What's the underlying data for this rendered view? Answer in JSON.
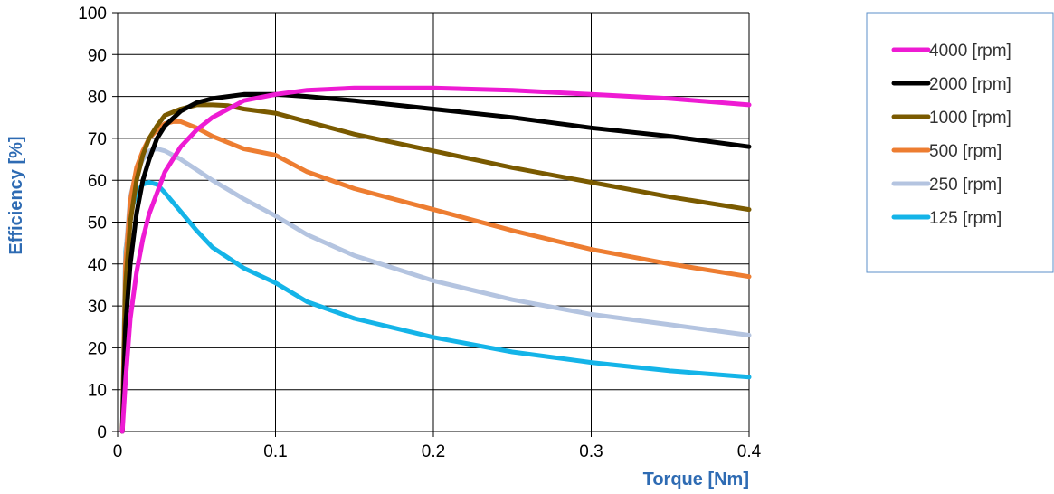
{
  "chart_data": {
    "type": "line",
    "xlabel": "Torque [Nm]",
    "ylabel": "Efficiency [%]",
    "xlim": [
      0,
      0.4
    ],
    "ylim": [
      0,
      100
    ],
    "x_ticks": [
      "0",
      "0.1",
      "0.2",
      "0.3",
      "0.4"
    ],
    "y_ticks": [
      "0",
      "10",
      "20",
      "30",
      "40",
      "50",
      "60",
      "70",
      "80",
      "90",
      "100"
    ],
    "grid": "on",
    "legend_position": "right",
    "series": [
      {
        "name": "4000 [rpm]",
        "color": "#ee1bd3",
        "x": [
          0.003,
          0.005,
          0.008,
          0.012,
          0.016,
          0.02,
          0.025,
          0.03,
          0.04,
          0.05,
          0.06,
          0.07,
          0.08,
          0.1,
          0.12,
          0.15,
          0.18,
          0.2,
          0.25,
          0.3,
          0.35,
          0.4
        ],
        "y": [
          0,
          12,
          27,
          38,
          46,
          52,
          57,
          62,
          68,
          72,
          75,
          77,
          79,
          80.5,
          81.5,
          82,
          82,
          82,
          81.5,
          80.5,
          79.5,
          78
        ]
      },
      {
        "name": "2000 [rpm]",
        "color": "#000000",
        "x": [
          0.003,
          0.005,
          0.008,
          0.012,
          0.016,
          0.02,
          0.025,
          0.03,
          0.04,
          0.05,
          0.06,
          0.08,
          0.1,
          0.12,
          0.15,
          0.2,
          0.25,
          0.3,
          0.35,
          0.4
        ],
        "y": [
          0,
          25,
          40,
          52,
          60,
          65,
          70,
          73,
          76.5,
          78.5,
          79.5,
          80.5,
          80.5,
          80,
          79,
          77,
          75,
          72.5,
          70.5,
          68
        ]
      },
      {
        "name": "1000 [rpm]",
        "color": "#7a5a00",
        "x": [
          0.003,
          0.005,
          0.008,
          0.012,
          0.016,
          0.02,
          0.025,
          0.03,
          0.04,
          0.05,
          0.06,
          0.07,
          0.08,
          0.1,
          0.12,
          0.15,
          0.2,
          0.25,
          0.3,
          0.35,
          0.4
        ],
        "y": [
          0,
          35,
          50,
          60,
          66,
          70,
          73,
          75.5,
          77,
          78,
          78,
          77.8,
          77,
          76,
          74,
          71,
          67,
          63,
          59.5,
          56,
          53
        ]
      },
      {
        "name": "500 [rpm]",
        "color": "#ed7d31",
        "x": [
          0.003,
          0.005,
          0.008,
          0.012,
          0.016,
          0.02,
          0.025,
          0.03,
          0.035,
          0.04,
          0.05,
          0.06,
          0.08,
          0.1,
          0.12,
          0.15,
          0.2,
          0.25,
          0.3,
          0.35,
          0.4
        ],
        "y": [
          0,
          40,
          55,
          63,
          67,
          70,
          72,
          73.5,
          74,
          74,
          72.5,
          70.5,
          67.5,
          66,
          62,
          58,
          53,
          48,
          43.5,
          40,
          37
        ]
      },
      {
        "name": "250 [rpm]",
        "color": "#b4c4e0",
        "x": [
          0.003,
          0.005,
          0.008,
          0.012,
          0.016,
          0.02,
          0.025,
          0.03,
          0.04,
          0.05,
          0.06,
          0.08,
          0.1,
          0.12,
          0.15,
          0.2,
          0.25,
          0.3,
          0.35,
          0.4
        ],
        "y": [
          0,
          42,
          56,
          62,
          65,
          67,
          67.5,
          67,
          65,
          62.5,
          60,
          55.5,
          51.5,
          47,
          42,
          36,
          31.5,
          28,
          25.5,
          23
        ]
      },
      {
        "name": "125 [rpm]",
        "color": "#14b4e8",
        "x": [
          0.003,
          0.005,
          0.008,
          0.012,
          0.016,
          0.02,
          0.025,
          0.03,
          0.04,
          0.05,
          0.06,
          0.08,
          0.1,
          0.12,
          0.15,
          0.2,
          0.25,
          0.3,
          0.35,
          0.4
        ],
        "y": [
          0,
          43,
          52,
          57,
          59,
          59.5,
          59,
          57,
          52.5,
          48,
          44,
          39,
          35.5,
          31,
          27,
          22.5,
          19,
          16.5,
          14.5,
          13
        ]
      }
    ]
  }
}
